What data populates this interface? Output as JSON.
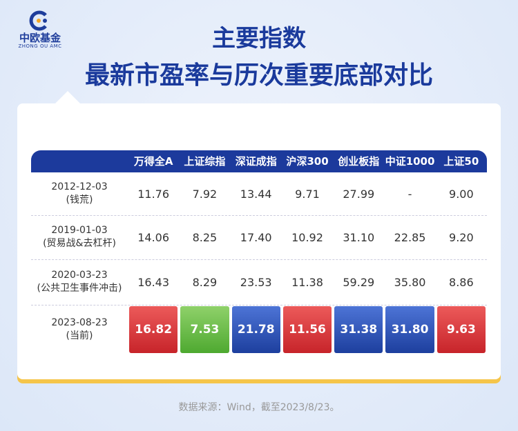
{
  "logo": {
    "name": "中欧基金",
    "subtitle": "ZHONG OU AMC"
  },
  "title": {
    "line1": "主要指数",
    "line2": "最新市盈率与历次重要底部对比"
  },
  "table": {
    "columns": [
      "万得全A",
      "上证综指",
      "深证成指",
      "沪深300",
      "创业板指",
      "中证1000",
      "上证50"
    ],
    "rows": [
      {
        "date": "2012-12-03",
        "note": "(钱荒)",
        "values": [
          "11.76",
          "7.92",
          "13.44",
          "9.71",
          "27.99",
          "-",
          "9.00"
        ]
      },
      {
        "date": "2019-01-03",
        "note": "(贸易战&去杠杆)",
        "values": [
          "14.06",
          "8.25",
          "17.40",
          "10.92",
          "31.10",
          "22.85",
          "9.20"
        ]
      },
      {
        "date": "2020-03-23",
        "note": "(公共卫生事件冲击)",
        "values": [
          "16.43",
          "8.29",
          "23.53",
          "11.38",
          "59.29",
          "35.80",
          "8.86"
        ]
      },
      {
        "date": "2023-08-23",
        "note": "(当前)",
        "values": [
          "16.82",
          "7.53",
          "21.78",
          "11.56",
          "31.38",
          "31.80",
          "9.63"
        ]
      }
    ]
  },
  "source": "数据来源：Wind，截至2023/8/23。"
}
